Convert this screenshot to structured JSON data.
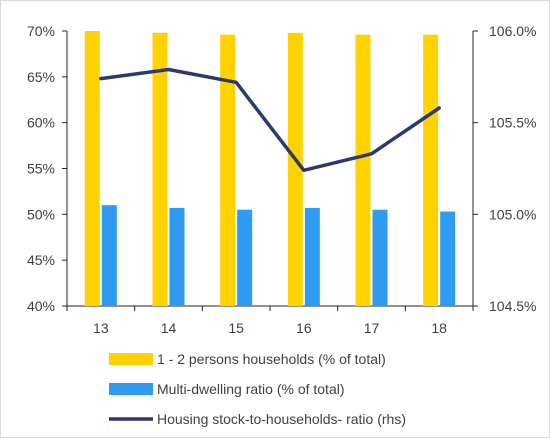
{
  "chart_data": {
    "type": "bar",
    "categories": [
      "13",
      "14",
      "15",
      "16",
      "17",
      "18"
    ],
    "series": [
      {
        "name": "1 - 2 persons households (% of total)",
        "kind": "bar",
        "axis": "left",
        "color": "#FFD200",
        "values": [
          70.0,
          69.8,
          69.6,
          69.8,
          69.6,
          69.6
        ]
      },
      {
        "name": "Multi-dwelling ratio (% of total)",
        "kind": "bar",
        "axis": "left",
        "color": "#2E9BF0",
        "values": [
          51.0,
          50.7,
          50.5,
          50.7,
          50.5,
          50.3
        ]
      },
      {
        "name": "Housing stock-to-households- ratio (rhs)",
        "kind": "line",
        "axis": "right",
        "color": "#2B3A6E",
        "values": [
          105.74,
          105.79,
          105.72,
          105.24,
          105.33,
          105.58
        ]
      }
    ],
    "y_left": {
      "range": [
        40,
        70
      ],
      "ticks": [
        40,
        45,
        50,
        55,
        60,
        65,
        70
      ],
      "tick_labels": [
        "40%",
        "45%",
        "50%",
        "55%",
        "60%",
        "65%",
        "70%"
      ]
    },
    "y_right": {
      "range": [
        104.5,
        106.0
      ],
      "ticks": [
        104.5,
        105.0,
        105.5,
        106.0
      ],
      "tick_labels": [
        "104.5%",
        "105.0%",
        "105.5%",
        "106.0%"
      ]
    },
    "grid": false,
    "legend_position": "bottom"
  }
}
